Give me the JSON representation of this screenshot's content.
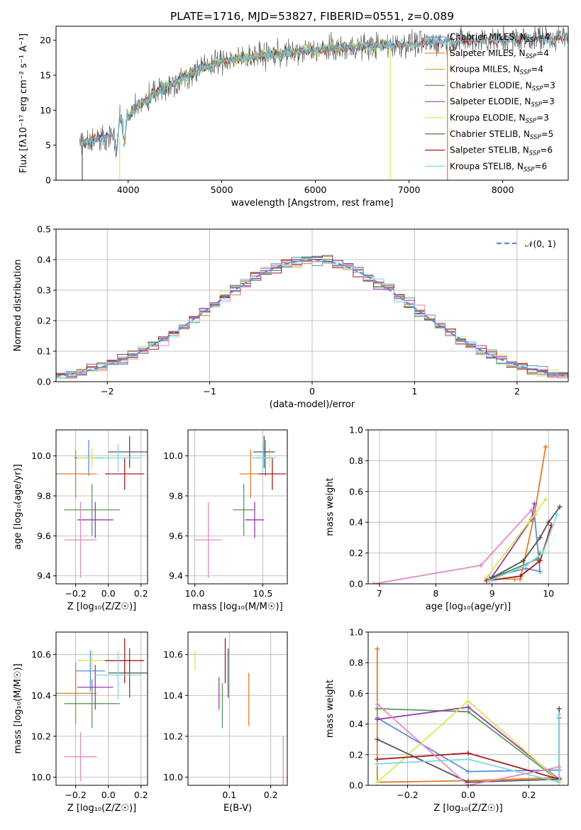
{
  "colors": {
    "Chabrier MILES": "#5b8ed9",
    "Salpeter MILES": "#e07b2a",
    "Kroupa MILES": "#d4a04a",
    "Chabrier ELODIE": "#5a9a5a",
    "Salpeter ELODIE": "#9a3ab0",
    "Kroupa ELODIE": "#d7e85a",
    "Chabrier STELIB": "#555555",
    "Salpeter STELIB": "#aa1a1a",
    "Kroupa STELIB": "#7fd8e0",
    "pink": "#e58ac0",
    "normal": "#5b8ed9"
  },
  "chart_data": [
    {
      "type": "line",
      "title": "PLATE=1716, MJD=53827, FIBERID=0551, z=0.089",
      "xlabel": "wavelength [Angstrom, rest frame]",
      "ylabel": "Flux [fλ10⁻¹⁷ erg cm⁻² s⁻¹ A⁻¹]",
      "xlim": [
        3230,
        8700
      ],
      "ylim": [
        0,
        22
      ],
      "xticks": [
        "4000",
        "5000",
        "6000",
        "7000",
        "8000"
      ],
      "yticks": [
        "0",
        "5",
        "10",
        "15",
        "20"
      ],
      "legend_placement": "upper-right",
      "legend": [
        {
          "label": "Chabrier MILES, N",
          "sub": "SSP",
          "tail": "=4"
        },
        {
          "label": "Salpeter MILES, N",
          "sub": "SSP",
          "tail": "=4"
        },
        {
          "label": "Kroupa MILES, N",
          "sub": "SSP",
          "tail": "=4"
        },
        {
          "label": "Chabrier ELODIE, N",
          "sub": "SSP",
          "tail": "=3"
        },
        {
          "label": "Salpeter ELODIE, N",
          "sub": "SSP",
          "tail": "=3"
        },
        {
          "label": "Kroupa ELODIE, N",
          "sub": "SSP",
          "tail": "=3"
        },
        {
          "label": "Chabrier STELIB, N",
          "sub": "SSP",
          "tail": "=5"
        },
        {
          "label": "Salpeter STELIB, N",
          "sub": "SSP",
          "tail": "=6"
        },
        {
          "label": "Kroupa STELIB, N",
          "sub": "SSP",
          "tail": "=6"
        }
      ],
      "continuum": {
        "x": [
          3500,
          3700,
          3900,
          4000,
          4100,
          4300,
          4500,
          4700,
          5000,
          5300,
          5600,
          6000,
          6400,
          6800,
          7200,
          7600,
          8000,
          8400,
          8700
        ],
        "y": [
          5.5,
          6.0,
          6.5,
          9.0,
          10.5,
          12.5,
          14.0,
          15.5,
          17.0,
          17.7,
          18.0,
          18.6,
          19.0,
          19.3,
          19.6,
          19.9,
          20.1,
          20.3,
          20.4
        ]
      },
      "spikes": [
        {
          "x": 3510,
          "y0": 0,
          "y1": 5
        },
        {
          "x": 3910,
          "y0": 0,
          "y1": 6
        },
        {
          "x": 6800,
          "y0": 0,
          "y1": 19
        },
        {
          "x": 7410,
          "y0": 0,
          "y1": 19
        }
      ]
    },
    {
      "type": "line",
      "xlabel": "(data-model)/error",
      "ylabel": "Normed distribution",
      "xlim": [
        -2.5,
        2.5
      ],
      "ylim": [
        0,
        0.5
      ],
      "xticks": [
        "−2",
        "−1",
        "0",
        "1",
        "2"
      ],
      "yticks": [
        "0.0",
        "0.1",
        "0.2",
        "0.3",
        "0.4",
        "0.5"
      ],
      "legend_placement": "upper-right",
      "legend": [
        "𝒩(0, 1)"
      ],
      "bin_width": 0.1,
      "step_series": 9
    },
    {
      "type": "scatter",
      "xlabel": "Z [log₁₀(Z/Z☉)]",
      "ylabel": "age  [log₁₀(age/yr)]",
      "xlim": [
        -0.32,
        0.24
      ],
      "ylim": [
        9.36,
        10.13
      ],
      "xticks": [
        "−0.2",
        "0.0",
        "0.2"
      ],
      "yticks": [
        "9.4",
        "9.6",
        "9.8",
        "10.0"
      ],
      "points": [
        {
          "series": "Chabrier MILES",
          "x": -0.12,
          "xerr": 0.09,
          "y": 9.99,
          "yerr": 0.09
        },
        {
          "series": "Salpeter MILES",
          "x": -0.2,
          "xerr": 0.13,
          "y": 9.91,
          "yerr": 0.12
        },
        {
          "series": "Chabrier ELODIE",
          "x": -0.1,
          "xerr": 0.17,
          "y": 9.73,
          "yerr": 0.13
        },
        {
          "series": "Salpeter ELODIE",
          "x": -0.08,
          "xerr": 0.11,
          "y": 9.68,
          "yerr": 0.09
        },
        {
          "series": "Kroupa ELODIE",
          "x": -0.1,
          "xerr": 0.09,
          "y": 9.99,
          "yerr": 0.05
        },
        {
          "series": "Chabrier STELIB",
          "x": 0.13,
          "xerr": 0.13,
          "y": 10.02,
          "yerr": 0.08
        },
        {
          "series": "Salpeter STELIB",
          "x": 0.1,
          "xerr": 0.12,
          "y": 9.91,
          "yerr": 0.08
        },
        {
          "series": "Kroupa STELIB",
          "x": 0.06,
          "xerr": 0.14,
          "y": 9.99,
          "yerr": 0.07
        },
        {
          "series": "pink",
          "x": -0.17,
          "xerr": 0.1,
          "y": 9.58,
          "yerr": 0.19
        }
      ]
    },
    {
      "type": "scatter",
      "xlabel": "mass [log₁₀(M/M☉)]",
      "ylabel": "",
      "xlim": [
        9.95,
        10.68
      ],
      "ylim": [
        9.36,
        10.13
      ],
      "xticks": [
        "10.0",
        "10.5"
      ],
      "yticks": [
        "9.4",
        "9.6",
        "9.8",
        "10.0"
      ],
      "points": [
        {
          "series": "Chabrier MILES",
          "x": 10.52,
          "xerr": 0.06,
          "y": 9.99,
          "yerr": 0.09
        },
        {
          "series": "Salpeter MILES",
          "x": 10.41,
          "xerr": 0.08,
          "y": 9.91,
          "yerr": 0.12
        },
        {
          "series": "Chabrier ELODIE",
          "x": 10.36,
          "xerr": 0.08,
          "y": 9.73,
          "yerr": 0.13
        },
        {
          "series": "Salpeter ELODIE",
          "x": 10.44,
          "xerr": 0.07,
          "y": 9.68,
          "yerr": 0.09
        },
        {
          "series": "Kroupa ELODIE",
          "x": 10.55,
          "xerr": 0.05,
          "y": 9.99,
          "yerr": 0.05
        },
        {
          "series": "Chabrier STELIB",
          "x": 10.51,
          "xerr": 0.08,
          "y": 10.02,
          "yerr": 0.08
        },
        {
          "series": "Salpeter STELIB",
          "x": 10.57,
          "xerr": 0.1,
          "y": 9.91,
          "yerr": 0.08
        },
        {
          "series": "Kroupa STELIB",
          "x": 10.5,
          "xerr": 0.09,
          "y": 9.99,
          "yerr": 0.07
        },
        {
          "series": "pink",
          "x": 10.1,
          "xerr": 0.1,
          "y": 9.58,
          "yerr": 0.19
        }
      ]
    },
    {
      "type": "line",
      "xlabel": "age  [log₁₀(age/yr)]",
      "ylabel": "mass weight",
      "xlim": [
        6.8,
        10.35
      ],
      "ylim": [
        0,
        1
      ],
      "xticks": [
        "7",
        "8",
        "9",
        "10"
      ],
      "yticks": [
        "0.0",
        "0.2",
        "0.4",
        "0.6",
        "0.8",
        "1.0"
      ],
      "series": [
        {
          "series": "Chabrier MILES",
          "x": [
            8.95,
            9.6,
            9.85,
            9.75
          ],
          "y": [
            0.04,
            0.1,
            0.08,
            0.45
          ]
        },
        {
          "series": "Salpeter MILES",
          "x": [
            9.4,
            9.5,
            9.75,
            9.95
          ],
          "y": [
            0.03,
            0.03,
            0.45,
            0.89
          ]
        },
        {
          "series": "Kroupa MILES",
          "x": [
            8.9,
            9.5
          ],
          "y": [
            0.03,
            0.03
          ]
        },
        {
          "series": "Chabrier ELODIE",
          "x": [
            8.95,
            9.8,
            9.85
          ],
          "y": [
            0.03,
            0.16,
            0.2
          ]
        },
        {
          "series": "Salpeter ELODIE",
          "x": [
            8.95,
            9.7,
            9.75
          ],
          "y": [
            0.02,
            0.42,
            0.52
          ]
        },
        {
          "series": "Kroupa ELODIE",
          "x": [
            8.9,
            9.65,
            9.95
          ],
          "y": [
            0.04,
            0.4,
            0.55
          ]
        },
        {
          "series": "Chabrier STELIB",
          "x": [
            9.0,
            9.55,
            9.85,
            10.0,
            10.2
          ],
          "y": [
            0.04,
            0.15,
            0.3,
            0.4,
            0.5
          ]
        },
        {
          "series": "Salpeter STELIB",
          "x": [
            8.9,
            9.5,
            9.85,
            10.05
          ],
          "y": [
            0.02,
            0.05,
            0.15,
            0.38
          ]
        },
        {
          "series": "Kroupa STELIB",
          "x": [
            8.95,
            9.6,
            9.9,
            10.15
          ],
          "y": [
            0.02,
            0.12,
            0.2,
            0.45
          ]
        },
        {
          "series": "pink",
          "x": [
            6.9,
            8.8,
            9.7
          ],
          "y": [
            0.0,
            0.12,
            0.48
          ]
        }
      ]
    },
    {
      "type": "scatter",
      "xlabel": "Z [log₁₀(Z/Z☉)]",
      "ylabel": "mass [log₁₀(M/M☉)]",
      "xlim": [
        -0.32,
        0.24
      ],
      "ylim": [
        9.96,
        10.71
      ],
      "xticks": [
        "−0.2",
        "0.0",
        "0.2"
      ],
      "yticks": [
        "10.0",
        "10.2",
        "10.4",
        "10.6"
      ],
      "points": [
        {
          "series": "Chabrier MILES",
          "x": -0.11,
          "xerr": 0.09,
          "y": 10.52,
          "yerr": 0.1
        },
        {
          "series": "Salpeter MILES",
          "x": -0.2,
          "xerr": 0.13,
          "y": 10.41,
          "yerr": 0.15
        },
        {
          "series": "Chabrier ELODIE",
          "x": -0.1,
          "xerr": 0.17,
          "y": 10.36,
          "yerr": 0.12
        },
        {
          "series": "Salpeter ELODIE",
          "x": -0.08,
          "xerr": 0.11,
          "y": 10.44,
          "yerr": 0.11
        },
        {
          "series": "Kroupa ELODIE",
          "x": -0.1,
          "xerr": 0.09,
          "y": 10.57,
          "yerr": 0.05
        },
        {
          "series": "Chabrier STELIB",
          "x": 0.13,
          "xerr": 0.13,
          "y": 10.51,
          "yerr": 0.12
        },
        {
          "series": "Salpeter STELIB",
          "x": 0.1,
          "xerr": 0.12,
          "y": 10.57,
          "yerr": 0.11
        },
        {
          "series": "Kroupa STELIB",
          "x": 0.06,
          "xerr": 0.14,
          "y": 10.5,
          "yerr": 0.12
        },
        {
          "series": "pink",
          "x": -0.17,
          "xerr": 0.1,
          "y": 10.1,
          "yerr": 0.12
        }
      ]
    },
    {
      "type": "scatter",
      "xlabel": "E(B-V)",
      "ylabel": "",
      "xlim": [
        0.0,
        0.24
      ],
      "ylim": [
        9.96,
        10.71
      ],
      "xticks": [
        "0.1",
        "0.2"
      ],
      "yticks": [
        "10.0",
        "10.2",
        "10.4",
        "10.6"
      ],
      "points": [
        {
          "series": "Kroupa ELODIE",
          "x": 0.017,
          "y": 10.57,
          "yerr": 0.05
        },
        {
          "series": "Salpeter ELODIE",
          "x": 0.075,
          "y": 10.41,
          "yerr": 0.08
        },
        {
          "series": "Chabrier ELODIE",
          "x": 0.083,
          "y": 10.35,
          "yerr": 0.11
        },
        {
          "series": "Salpeter STELIB",
          "x": 0.09,
          "y": 10.57,
          "yerr": 0.11
        },
        {
          "series": "Chabrier STELIB",
          "x": 0.097,
          "y": 10.51,
          "yerr": 0.12
        },
        {
          "series": "Kroupa STELIB",
          "x": 0.1,
          "y": 10.5,
          "yerr": 0.12
        },
        {
          "series": "Salpeter MILES",
          "x": 0.147,
          "y": 10.38,
          "yerr": 0.13
        },
        {
          "series": "pink",
          "x": 0.23,
          "y": 10.08,
          "yerr": 0.12
        }
      ]
    },
    {
      "type": "line",
      "xlabel": "Z [log₁₀(Z/Z☉)]",
      "ylabel": "mass weight",
      "xlim": [
        -0.33,
        0.33
      ],
      "ylim": [
        0,
        1
      ],
      "xticks": [
        "−0.2",
        "0.0",
        "0.2"
      ],
      "yticks": [
        "0.0",
        "0.2",
        "0.4",
        "0.6",
        "0.8",
        "1.0"
      ],
      "series": [
        {
          "series": "Chabrier MILES",
          "x": [
            -0.3,
            0.0,
            0.3,
            0.3
          ],
          "y": [
            0.44,
            0.09,
            0.1,
            0.44
          ]
        },
        {
          "series": "Salpeter MILES",
          "x": [
            -0.3,
            -0.3,
            0.0,
            0.3
          ],
          "y": [
            0.89,
            0.02,
            0.03,
            0.05
          ]
        },
        {
          "series": "Chabrier ELODIE",
          "x": [
            -0.3,
            0.0,
            0.3
          ],
          "y": [
            0.5,
            0.48,
            0.03
          ]
        },
        {
          "series": "Salpeter ELODIE",
          "x": [
            -0.3,
            0.0,
            0.3
          ],
          "y": [
            0.43,
            0.51,
            0.04
          ]
        },
        {
          "series": "Kroupa ELODIE",
          "x": [
            -0.3,
            -0.3,
            0.0,
            0.3
          ],
          "y": [
            0.02,
            0.02,
            0.55,
            0.03
          ]
        },
        {
          "series": "Chabrier STELIB",
          "x": [
            -0.3,
            0.0,
            0.3,
            0.3
          ],
          "y": [
            0.3,
            0.02,
            0.04,
            0.5
          ]
        },
        {
          "series": "Salpeter STELIB",
          "x": [
            -0.3,
            0.0,
            0.3
          ],
          "y": [
            0.17,
            0.21,
            0.04
          ]
        },
        {
          "series": "Kroupa STELIB",
          "x": [
            -0.3,
            0.0,
            0.3,
            0.3
          ],
          "y": [
            0.14,
            0.17,
            0.02,
            0.46
          ]
        },
        {
          "series": "pink",
          "x": [
            -0.3,
            0.0,
            0.3
          ],
          "y": [
            0.53,
            0.0,
            0.12
          ]
        }
      ]
    }
  ]
}
